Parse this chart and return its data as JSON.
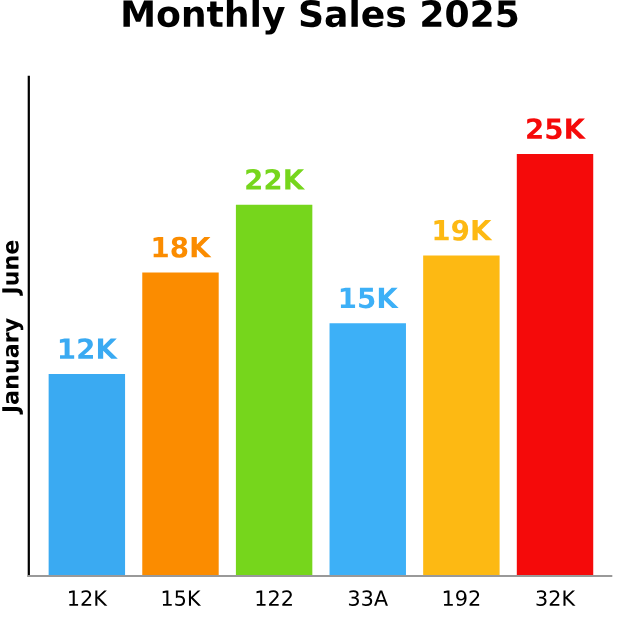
{
  "chart_data": {
    "type": "bar",
    "title": "Monthly Sales 2025",
    "ylabel": "January   June",
    "categories": [
      "12K",
      "15K",
      "122",
      "33A",
      "192",
      "32K"
    ],
    "values": [
      12,
      18,
      22,
      15,
      19,
      25
    ],
    "colors": [
      "#3aaaf2",
      "#fb8c00",
      "#76d61c",
      "#3db0f7",
      "#fdb913",
      "#f50a0a"
    ],
    "value_labels": [
      "12K",
      "18K",
      "22K",
      "15K",
      "19K",
      "25K"
    ],
    "grid": false,
    "legend": false
  }
}
